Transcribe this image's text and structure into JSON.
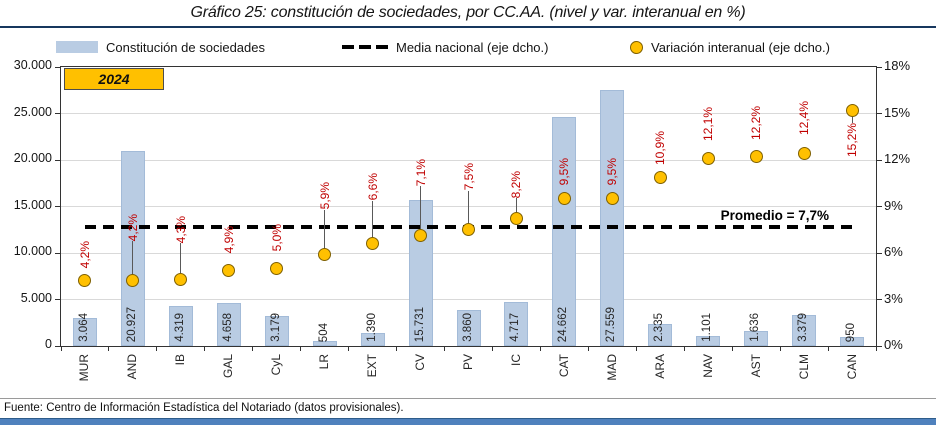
{
  "title": "Gráfico 25: constitución de sociedades, por CC.AA. (nivel y var. interanual en %)",
  "year_badge": "2024",
  "legend": {
    "items": [
      {
        "label": "Constitución de sociedades",
        "icon": "bar-swatch"
      },
      {
        "label": "Media nacional (eje dcho.)",
        "icon": "dashed-line"
      },
      {
        "label": "Variación interanual (eje dcho.)",
        "icon": "circle-marker"
      }
    ]
  },
  "footer": {
    "source": "Fuente: Centro de Información Estadística del Notariado (datos provisionales)."
  },
  "chart_data": {
    "type": "bar",
    "subtype": "combo-bar-scatter-dual-axis",
    "categories": [
      "MUR",
      "AND",
      "IB",
      "GAL",
      "CyL",
      "LR",
      "EXT",
      "CV",
      "PV",
      "IC",
      "CAT",
      "MAD",
      "ARA",
      "NAV",
      "AST",
      "CLM",
      "CAN"
    ],
    "series": [
      {
        "name": "Constitución de sociedades",
        "type": "bar",
        "axis": "left",
        "values": [
          3064,
          20927,
          4319,
          4658,
          3179,
          504,
          1390,
          15731,
          3860,
          4717,
          24662,
          27559,
          2335,
          1101,
          1636,
          3379,
          950
        ],
        "value_labels": [
          "3.064",
          "20.927",
          "4.319",
          "4.658",
          "3.179",
          "504",
          "1.390",
          "15.731",
          "3.860",
          "4.717",
          "24.662",
          "27.559",
          "2.335",
          "1.101",
          "1.636",
          "3.379",
          "950"
        ]
      },
      {
        "name": "Variación interanual (eje dcho.)",
        "type": "scatter",
        "axis": "right",
        "values": [
          4.2,
          4.2,
          4.3,
          4.9,
          5.0,
          5.9,
          6.6,
          7.1,
          7.5,
          8.2,
          9.5,
          9.5,
          10.9,
          12.1,
          12.2,
          12.4,
          15.2
        ],
        "value_labels": [
          "4,2%",
          "4,2%",
          "4,3%",
          "4,9%",
          "5,0%",
          "5,9%",
          "6,6%",
          "7,1%",
          "7,5%",
          "8,2%",
          "9,5%",
          "9,5%",
          "10,9%",
          "12,1%",
          "12,2%",
          "12,4%",
          "15,2%"
        ]
      }
    ],
    "reference_line": {
      "label": "Promedio = 7,7%",
      "value": 7.7,
      "axis": "right",
      "style": "dashed-black"
    },
    "left_axis": {
      "min": 0,
      "max": 30000,
      "tick_labels": [
        "30.000",
        "25.000",
        "20.000",
        "15.000",
        "10.000",
        "5.000",
        "0"
      ]
    },
    "right_axis": {
      "min": 0,
      "max": 18,
      "tick_labels": [
        "18%",
        "15%",
        "12%",
        "9%",
        "6%",
        "3%",
        "0%"
      ]
    },
    "grid": "horizontal",
    "legend_position": "top",
    "colors": {
      "bar_fill": "#B9CCE3",
      "marker_fill": "#FFC000",
      "pct_label": "#C00000",
      "reference_line": "#000000",
      "title_rule": "#17375E",
      "bottom_bar": "#4F81BD"
    }
  }
}
